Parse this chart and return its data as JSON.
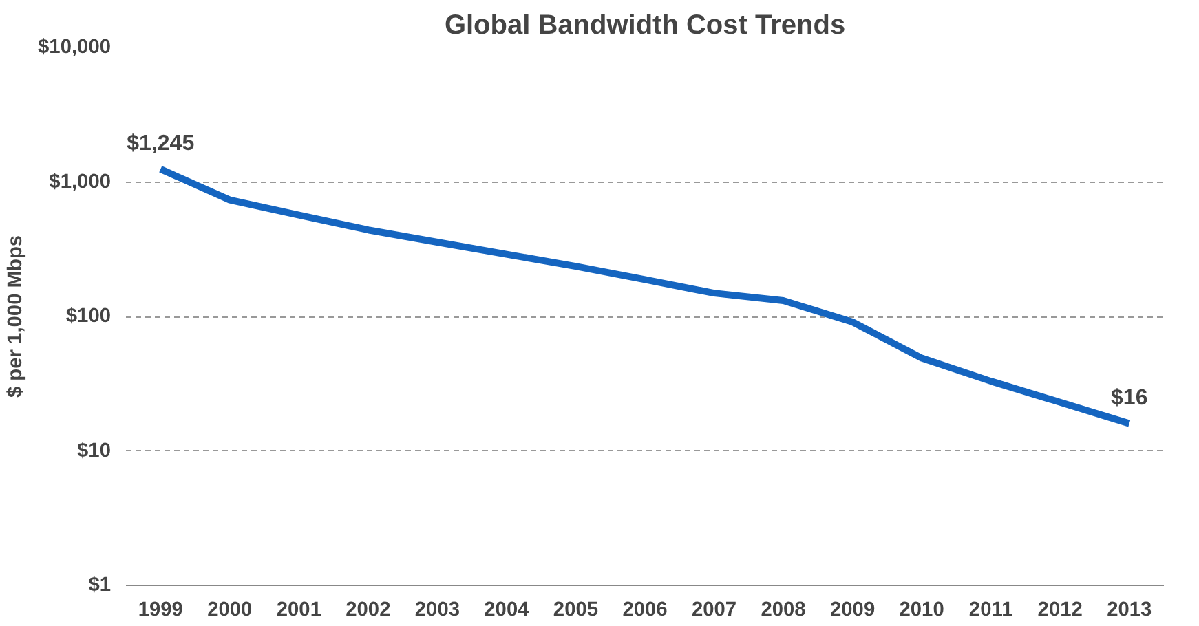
{
  "chart_data": {
    "type": "line",
    "title": "Global Bandwidth Cost Trends",
    "ylabel": "$ per 1,000 Mbps",
    "categories": [
      "1999",
      "2000",
      "2001",
      "2002",
      "2003",
      "2004",
      "2005",
      "2006",
      "2007",
      "2008",
      "2009",
      "2010",
      "2011",
      "2012",
      "2013"
    ],
    "series": [
      {
        "color": "#1565c0",
        "values": [
          1245,
          735,
          567,
          440,
          357,
          290,
          236,
          188,
          149,
          131,
          91,
          49,
          33,
          23,
          16
        ],
        "value_labels": [
          "$1,245",
          null,
          null,
          null,
          null,
          null,
          null,
          null,
          null,
          null,
          null,
          null,
          null,
          null,
          "$16"
        ]
      }
    ],
    "log": "y",
    "ylim": [
      1,
      10000
    ],
    "yticks": [
      {
        "value": 1,
        "label": "$1"
      },
      {
        "value": 10,
        "label": "$10"
      },
      {
        "value": 100,
        "label": "$100"
      },
      {
        "value": 1000,
        "label": "$1,000"
      },
      {
        "value": 10000,
        "label": "$10,000"
      }
    ],
    "grid": "y",
    "line_style": "solid",
    "marker": "none"
  }
}
